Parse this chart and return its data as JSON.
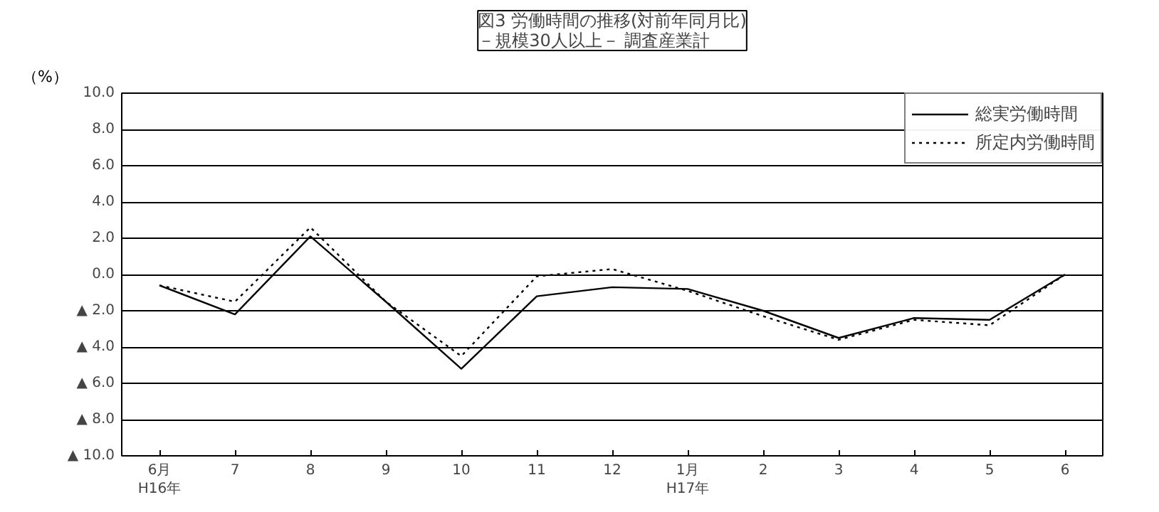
{
  "chart_data": {
    "type": "line",
    "title": "図3 労働時間の推移(対前年同月比)\n－規模30人以上－  調査産業計",
    "ylabel": "（%）",
    "categories": [
      "6月\nH16年",
      "7",
      "8",
      "9",
      "10",
      "11",
      "12",
      "1月\nH17年",
      "2",
      "3",
      "4",
      "5",
      "6"
    ],
    "series": [
      {
        "name": "総実労働時間",
        "color": "#000000",
        "line_style": "solid",
        "values": [
          -0.6,
          -2.2,
          2.1,
          -1.5,
          -5.2,
          -1.2,
          -0.7,
          -0.8,
          -2.0,
          -3.5,
          -2.4,
          -2.5,
          0.0
        ]
      },
      {
        "name": "所定内労働時間",
        "color": "#000000",
        "line_style": "dotted",
        "values": [
          -0.6,
          -1.5,
          2.6,
          -1.5,
          -4.5,
          -0.1,
          0.3,
          -0.9,
          -2.3,
          -3.6,
          -2.5,
          -2.8,
          0.0
        ]
      }
    ],
    "ylim": [
      -10,
      10
    ],
    "yticks": [
      {
        "value": -10,
        "label": "▲ 10.0"
      },
      {
        "value": -8,
        "label": "▲ 8.0"
      },
      {
        "value": -6,
        "label": "▲ 6.0"
      },
      {
        "value": -4,
        "label": "▲ 4.0"
      },
      {
        "value": -2,
        "label": "▲ 2.0"
      },
      {
        "value": 0,
        "label": "0.0"
      },
      {
        "value": 2,
        "label": "2.0"
      },
      {
        "value": 4,
        "label": "4.0"
      },
      {
        "value": 6,
        "label": "6.0"
      },
      {
        "value": 8,
        "label": "8.0"
      },
      {
        "value": 10,
        "label": "10.0"
      }
    ],
    "grid": "y",
    "legend": "top right",
    "marker": "none"
  }
}
